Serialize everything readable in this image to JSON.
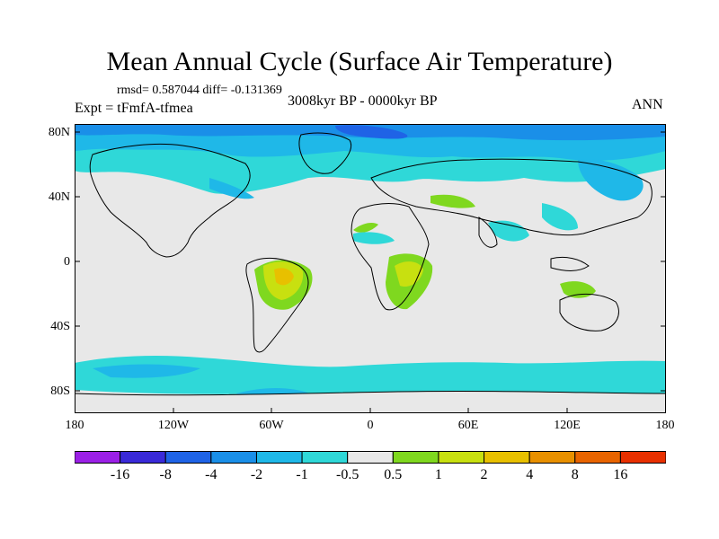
{
  "title": "Mean Annual Cycle (Surface Air Temperature)",
  "stats": "rmsd= 0.587044 diff= -0.131369",
  "expt": "Expt = tFmfA-tfmea",
  "period": "3008kyr BP - 0000kyr BP",
  "season": "ANN",
  "y_ticks": [
    "80N",
    "40N",
    "0",
    "40S",
    "80S"
  ],
  "x_ticks": [
    "180",
    "120W",
    "60W",
    "0",
    "60E",
    "120E",
    "180"
  ],
  "colorbar": {
    "labels": [
      "-16",
      "-8",
      "-4",
      "-2",
      "-1",
      "-0.5",
      "0.5",
      "1",
      "2",
      "4",
      "8",
      "16"
    ],
    "colors": [
      "#9b20e6",
      "#3a2ad8",
      "#1f63e6",
      "#1a8fe8",
      "#1fb8e8",
      "#2fd8d8",
      "#e8e8e8",
      "#7fd81f",
      "#c8e010",
      "#e8c000",
      "#e89000",
      "#e86400",
      "#e83000"
    ]
  },
  "palette": {
    "neutral": "#e8e8e8",
    "coast": "#000000",
    "deep_blue": "#1f63e6",
    "mid_blue": "#1a8fe8",
    "light_blue": "#1fb8e8",
    "cyan": "#2fd8d8",
    "green": "#7fd81f",
    "yellow_green": "#c8e010",
    "orange": "#e8c000"
  }
}
